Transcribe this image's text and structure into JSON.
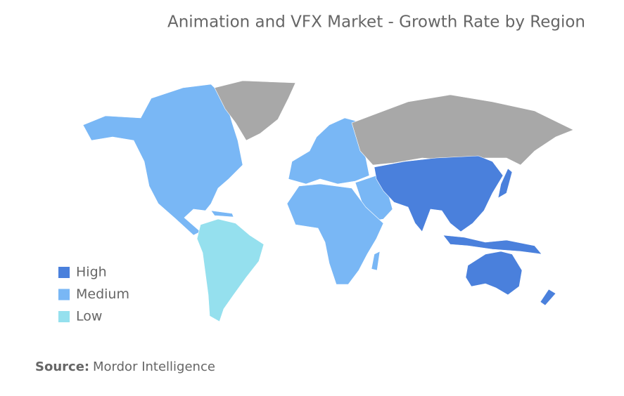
{
  "title": "Animation and VFX Market - Growth Rate by Region",
  "legend": [
    {
      "name": "High",
      "color": "#4a80dc"
    },
    {
      "name": "Medium",
      "color": "#79b7f5"
    },
    {
      "name": "Low",
      "color": "#95e0ee"
    }
  ],
  "source": {
    "label": "Source:",
    "text": "Mordor Intelligence"
  }
}
